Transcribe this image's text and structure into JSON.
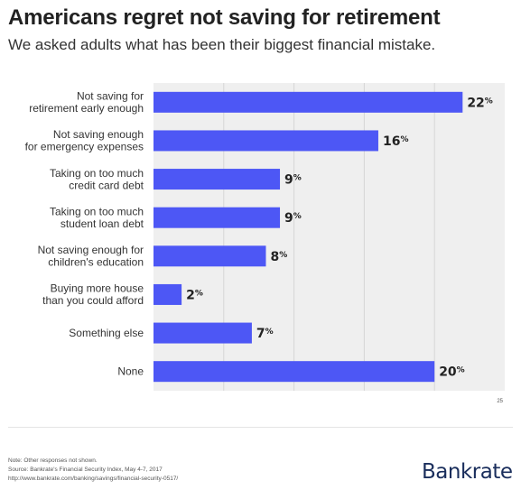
{
  "title": "Americans regret not saving for retirement",
  "subtitle": "We asked adults what has been their biggest financial mistake.",
  "notes": [
    "Note: Other responses not shown.",
    "Source: Bankrate's Financial Security Index, May 4-7, 2017",
    "http://www.bankrate.com/banking/savings/financial-security-0517/"
  ],
  "logo_text": "Bankrate",
  "colors": {
    "bar": "#4d57f5",
    "plot_bg": "#efefef",
    "grid": "#d6d6d6"
  },
  "chart_data": {
    "type": "bar",
    "orientation": "horizontal",
    "categories": [
      [
        "Not saving for",
        "retirement early enough"
      ],
      [
        "Not saving enough",
        "for emergency expenses"
      ],
      [
        "Taking on too much",
        "credit card debt"
      ],
      [
        "Taking on too much",
        "student loan debt"
      ],
      [
        "Not saving enough for",
        "children's education"
      ],
      [
        "Buying more house",
        "than you could afford"
      ],
      [
        "Something else"
      ],
      [
        "None"
      ]
    ],
    "values": [
      22,
      16,
      9,
      9,
      8,
      2,
      7,
      20
    ],
    "value_labels": [
      "22%",
      "16%",
      "9%",
      "9%",
      "8%",
      "2%",
      "7%",
      "20%"
    ],
    "xlim": [
      0,
      25
    ],
    "x_ticks_shown": [
      "25"
    ],
    "grid": true,
    "title": "Americans regret not saving for retirement",
    "xlabel": "",
    "ylabel": ""
  }
}
